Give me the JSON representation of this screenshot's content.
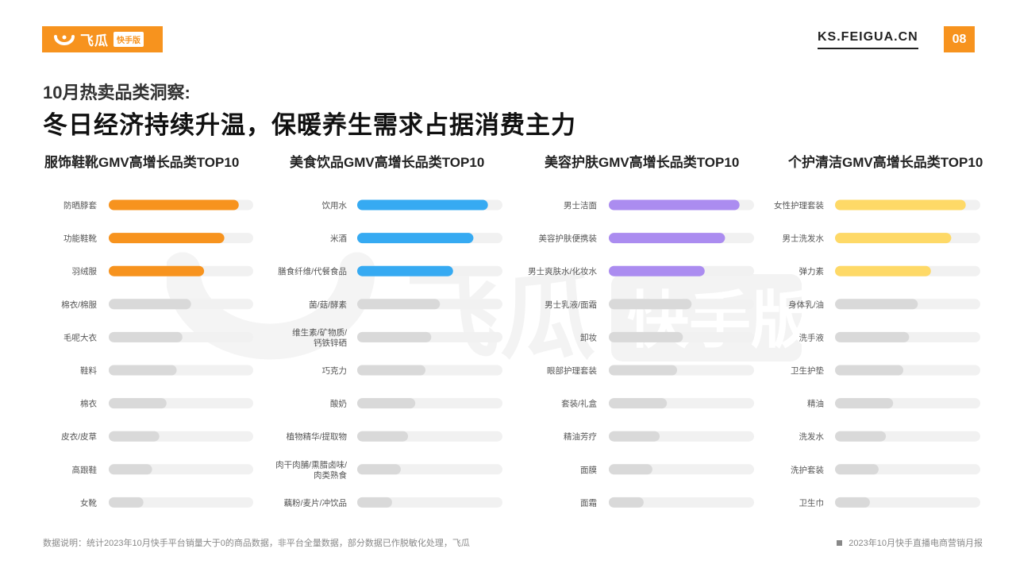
{
  "header": {
    "brand": "飞瓜",
    "brand_tag": "快手版",
    "site": "KS.FEIGUA.CN",
    "page_number": "08"
  },
  "page": {
    "subtitle": "10月热卖品类洞察:",
    "title": "冬日经济持续升温，保暖养生需求占据消费主力"
  },
  "watermark": {
    "text": "飞瓜",
    "tag": "快手版"
  },
  "footer": {
    "note": "数据说明：统计2023年10月快手平台销量大于0的商品数据，非平台全量数据，部分数据已作脱敏化处理，飞瓜",
    "report": "2023年10月快手直播电商营销月报"
  },
  "colors": {
    "orange": "#f7931e",
    "blue": "#36aaf2",
    "purple": "#ab8cf0",
    "yellow": "#fed967",
    "grey_bar": "#d9d9d9",
    "track": "#f1f1f1"
  },
  "chart_data": [
    {
      "type": "bar",
      "orientation": "horizontal",
      "title": "服饰鞋靴GMV高增长品类TOP10",
      "highlight_color": "#f7931e",
      "highlight_top": 3,
      "max": 100,
      "categories": [
        "防晒脖套",
        "功能鞋靴",
        "羽绒服",
        "棉衣/棉服",
        "毛呢大衣",
        "鞋料",
        "棉衣",
        "皮衣/皮草",
        "高跟鞋",
        "女靴"
      ],
      "values": [
        90,
        80,
        66,
        57,
        51,
        47,
        40,
        35,
        30,
        24
      ]
    },
    {
      "type": "bar",
      "orientation": "horizontal",
      "title": "美食饮品GMV高增长品类TOP10",
      "highlight_color": "#36aaf2",
      "highlight_top": 3,
      "max": 100,
      "categories": [
        "饮用水",
        "米酒",
        "膳食纤维/代餐食品",
        "菌/菇/酵素",
        "维生素/矿物质/钙铁锌硒",
        "巧克力",
        "酸奶",
        "植物精华/提取物",
        "肉干肉脯/熏腊卤味/肉类熟食",
        "藕粉/麦片/冲饮品"
      ],
      "values": [
        90,
        80,
        66,
        57,
        51,
        47,
        40,
        35,
        30,
        24
      ]
    },
    {
      "type": "bar",
      "orientation": "horizontal",
      "title": "美容护肤GMV高增长品类TOP10",
      "highlight_color": "#ab8cf0",
      "highlight_top": 3,
      "max": 100,
      "categories": [
        "男士洁面",
        "美容护肤便携装",
        "男士爽肤水/化妆水",
        "男士乳液/面霜",
        "卸妆",
        "眼部护理套装",
        "套装/礼盒",
        "精油芳疗",
        "面膜",
        "面霜"
      ],
      "values": [
        90,
        80,
        66,
        57,
        51,
        47,
        40,
        35,
        30,
        24
      ]
    },
    {
      "type": "bar",
      "orientation": "horizontal",
      "title": "个护清洁GMV高增长品类TOP10",
      "highlight_color": "#fed967",
      "highlight_top": 3,
      "max": 100,
      "categories": [
        "女性护理套装",
        "男士洗发水",
        "弹力素",
        "身体乳/油",
        "洗手液",
        "卫生护垫",
        "精油",
        "洗发水",
        "洗护套装",
        "卫生巾"
      ],
      "values": [
        90,
        80,
        66,
        57,
        51,
        47,
        40,
        35,
        30,
        24
      ]
    }
  ]
}
